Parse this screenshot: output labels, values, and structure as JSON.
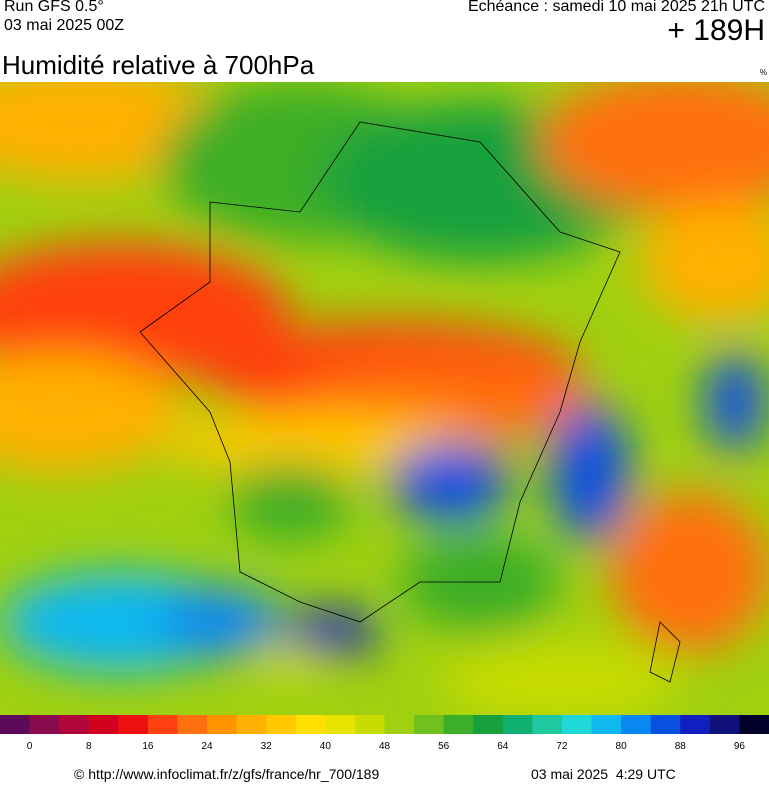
{
  "header": {
    "run": "Run GFS 0.5°",
    "run_date": "03 mai 2025 00Z",
    "valid": "Echéance : samedi 10 mai 2025 21h UTC",
    "lead": "+ 189H",
    "title": "Humidité relative à 700hPa",
    "unit": "%"
  },
  "colorbar": {
    "colors": [
      "#5c0a5a",
      "#8a0a4e",
      "#b0063a",
      "#d2001e",
      "#ee1010",
      "#ff4010",
      "#ff7010",
      "#ff9400",
      "#ffb000",
      "#ffc800",
      "#ffe000",
      "#e8e400",
      "#c8dc00",
      "#a0d010",
      "#70c020",
      "#3cae28",
      "#18a03c",
      "#10b070",
      "#20c8a0",
      "#20d8d8",
      "#10b8f0",
      "#0888f0",
      "#0850e0",
      "#1020c0",
      "#10107a",
      "#000028"
    ],
    "ticks": [
      0,
      8,
      16,
      24,
      32,
      40,
      48,
      56,
      64,
      72,
      80,
      88,
      96
    ]
  },
  "footer": {
    "source": "© http://www.infoclimat.fr/z/gfs/france/hr_700/189",
    "generated": "03 mai 2025  4:29 UTC"
  }
}
